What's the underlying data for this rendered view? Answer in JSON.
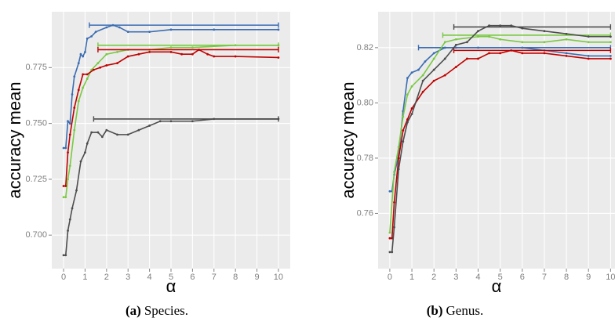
{
  "chart_data": [
    {
      "type": "line",
      "xlabel": "α",
      "ylabel": "accuracy mean",
      "caption_label": "(a)",
      "caption": "Species.",
      "xlim": [
        -0.55,
        10.55
      ],
      "ylim": [
        0.685,
        0.8
      ],
      "xticks": [
        0,
        1,
        2,
        3,
        4,
        5,
        6,
        7,
        8,
        9,
        10
      ],
      "yticks": [
        {
          "value": 0.7,
          "label": "0.700"
        },
        0.725,
        {
          "value": 0.75,
          "label": "0.750"
        },
        0.775
      ],
      "grid": true,
      "series": [
        {
          "color": "#3b6db3",
          "x": [
            0,
            0.1,
            0.2,
            0.3,
            0.4,
            0.5,
            0.7,
            0.8,
            0.9,
            1.0,
            1.1,
            1.3,
            1.5,
            2.0,
            2.3,
            2.6,
            3.0,
            4,
            5,
            7,
            10
          ],
          "values": [
            0.739,
            0.739,
            0.751,
            0.75,
            0.763,
            0.771,
            0.777,
            0.781,
            0.78,
            0.782,
            0.788,
            0.789,
            0.791,
            0.793,
            0.794,
            0.793,
            0.791,
            0.791,
            0.792,
            0.792,
            0.792
          ],
          "interval": {
            "xmin": 1.2,
            "xmax": 10,
            "y": 0.794
          }
        },
        {
          "color": "#7ac943",
          "x": [
            0,
            0.1,
            0.2,
            0.3,
            0.5,
            0.7,
            0.9,
            1.1,
            1.3,
            1.6,
            2.0,
            2.5,
            3,
            4,
            5,
            6,
            8,
            10
          ],
          "values": [
            0.717,
            0.717,
            0.725,
            0.731,
            0.747,
            0.76,
            0.766,
            0.77,
            0.774,
            0.777,
            0.781,
            0.782,
            0.783,
            0.783,
            0.784,
            0.784,
            0.785,
            0.785
          ],
          "interval": {
            "xmin": 1.6,
            "xmax": 10,
            "y": 0.785
          }
        },
        {
          "color": "#c00000",
          "x": [
            0,
            0.1,
            0.2,
            0.3,
            0.5,
            0.7,
            0.9,
            1.1,
            1.4,
            1.7,
            2.0,
            2.5,
            3,
            3.5,
            4,
            5,
            5.5,
            6,
            6.3,
            6.7,
            7,
            8,
            10
          ],
          "values": [
            0.722,
            0.722,
            0.737,
            0.745,
            0.757,
            0.765,
            0.772,
            0.772,
            0.774,
            0.775,
            0.776,
            0.777,
            0.78,
            0.781,
            0.782,
            0.782,
            0.781,
            0.781,
            0.783,
            0.781,
            0.78,
            0.78,
            0.7795
          ],
          "interval": {
            "xmin": 1.6,
            "xmax": 10,
            "y": 0.783
          }
        },
        {
          "color": "#4d4d4d",
          "x": [
            0,
            0.1,
            0.2,
            0.3,
            0.4,
            0.6,
            0.8,
            1.0,
            1.1,
            1.3,
            1.6,
            1.8,
            2.0,
            2.5,
            3,
            3.5,
            4,
            4.5,
            5,
            6,
            7,
            10
          ],
          "values": [
            0.691,
            0.691,
            0.702,
            0.707,
            0.712,
            0.72,
            0.733,
            0.737,
            0.741,
            0.746,
            0.746,
            0.744,
            0.747,
            0.745,
            0.745,
            0.747,
            0.749,
            0.751,
            0.751,
            0.751,
            0.752,
            0.752
          ],
          "interval": {
            "xmin": 1.4,
            "xmax": 10,
            "y": 0.752
          }
        }
      ]
    },
    {
      "type": "line",
      "xlabel": "α",
      "ylabel": "accuracy mean",
      "caption_label": "(b)",
      "caption": "Genus.",
      "xlim": [
        -0.53,
        10.2
      ],
      "ylim": [
        0.74,
        0.833
      ],
      "xticks": [
        0,
        1,
        2,
        3,
        4,
        5,
        6,
        7,
        8,
        9,
        10
      ],
      "yticks": [
        0.76,
        0.78,
        {
          "value": 0.8,
          "label": "0.80"
        },
        0.82
      ],
      "grid": true,
      "series": [
        {
          "color": "#3b6db3",
          "x": [
            0,
            0.1,
            0.2,
            0.4,
            0.6,
            0.8,
            1.0,
            1.3,
            1.6,
            2.0,
            2.5,
            3,
            4,
            6,
            7,
            8,
            9,
            10
          ],
          "values": [
            0.768,
            0.768,
            0.774,
            0.781,
            0.797,
            0.809,
            0.811,
            0.812,
            0.815,
            0.818,
            0.82,
            0.82,
            0.82,
            0.82,
            0.819,
            0.818,
            0.817,
            0.817
          ],
          "interval": {
            "xmin": 1.3,
            "xmax": 10,
            "y": 0.82
          }
        },
        {
          "color": "#7ac943",
          "x": [
            0,
            0.2,
            0.4,
            0.6,
            0.8,
            1.0,
            1.5,
            2.0,
            2.5,
            3,
            4,
            4.5,
            5,
            6,
            7,
            8,
            9,
            10
          ],
          "values": [
            0.753,
            0.775,
            0.784,
            0.795,
            0.803,
            0.806,
            0.81,
            0.816,
            0.822,
            0.823,
            0.824,
            0.824,
            0.823,
            0.822,
            0.822,
            0.823,
            0.822,
            0.822
          ],
          "interval": {
            "xmin": 2.4,
            "xmax": 10,
            "y": 0.8245
          }
        },
        {
          "color": "#c00000",
          "x": [
            0,
            0.1,
            0.2,
            0.4,
            0.6,
            0.8,
            1.0,
            1.5,
            2,
            2.5,
            3,
            3.5,
            4,
            4.5,
            5,
            5.5,
            6,
            7,
            8,
            9,
            10
          ],
          "values": [
            0.751,
            0.751,
            0.764,
            0.78,
            0.79,
            0.794,
            0.798,
            0.804,
            0.808,
            0.81,
            0.813,
            0.816,
            0.816,
            0.818,
            0.818,
            0.819,
            0.818,
            0.818,
            0.817,
            0.816,
            0.816
          ],
          "interval": {
            "xmin": 2.9,
            "xmax": 10,
            "y": 0.819
          }
        },
        {
          "color": "#4d4d4d",
          "x": [
            0,
            0.1,
            0.2,
            0.4,
            0.6,
            0.8,
            1.0,
            1.5,
            2.0,
            2.5,
            3,
            3.5,
            4,
            4.5,
            5,
            5.5,
            6,
            7,
            8,
            9,
            10
          ],
          "values": [
            0.746,
            0.746,
            0.755,
            0.776,
            0.786,
            0.793,
            0.796,
            0.808,
            0.812,
            0.816,
            0.821,
            0.822,
            0.826,
            0.828,
            0.828,
            0.828,
            0.827,
            0.826,
            0.825,
            0.824,
            0.824
          ],
          "interval": {
            "xmin": 2.9,
            "xmax": 10,
            "y": 0.8275
          }
        }
      ]
    }
  ]
}
